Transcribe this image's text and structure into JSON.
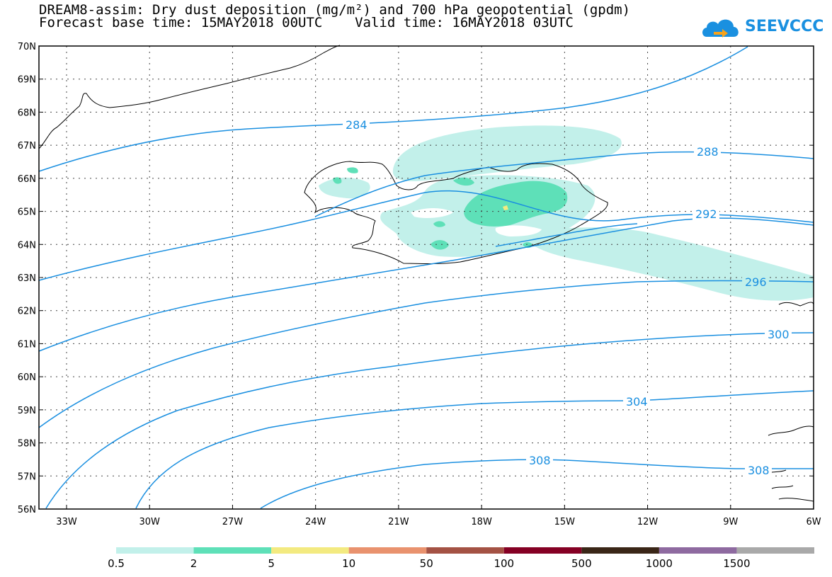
{
  "title": {
    "line1": "DREAM8-assim: Dry dust deposition (mg/m²) and 700 hPa geopotential (gpdm)",
    "line2": "Forecast base time: 15MAY2018 00UTC    Valid time: 16MAY2018 03UTC"
  },
  "logo": {
    "text": "SEEVCCC",
    "color": "#1a90e0"
  },
  "map": {
    "lat_labels": [
      "70N",
      "69N",
      "68N",
      "67N",
      "66N",
      "65N",
      "64N",
      "63N",
      "62N",
      "61N",
      "60N",
      "59N",
      "58N",
      "57N",
      "56N"
    ],
    "lon_labels": [
      "33W",
      "30W",
      "27W",
      "24W",
      "21W",
      "18W",
      "15W",
      "12W",
      "9W",
      "6W"
    ],
    "contour_color": "#1a8fe0",
    "contour_labels": [
      "284",
      "288",
      "292",
      "296",
      "300",
      "304",
      "308",
      "308"
    ]
  },
  "legend": {
    "colors": [
      "#c2f0ea",
      "#5ee0b8",
      "#f3ea80",
      "#e9926e",
      "#a45244",
      "#850024",
      "#3a2617",
      "#8e6aa0",
      "#a9a9a9"
    ],
    "labels": [
      "0.5",
      "2",
      "5",
      "10",
      "50",
      "100",
      "500",
      "1000",
      "1500"
    ]
  }
}
